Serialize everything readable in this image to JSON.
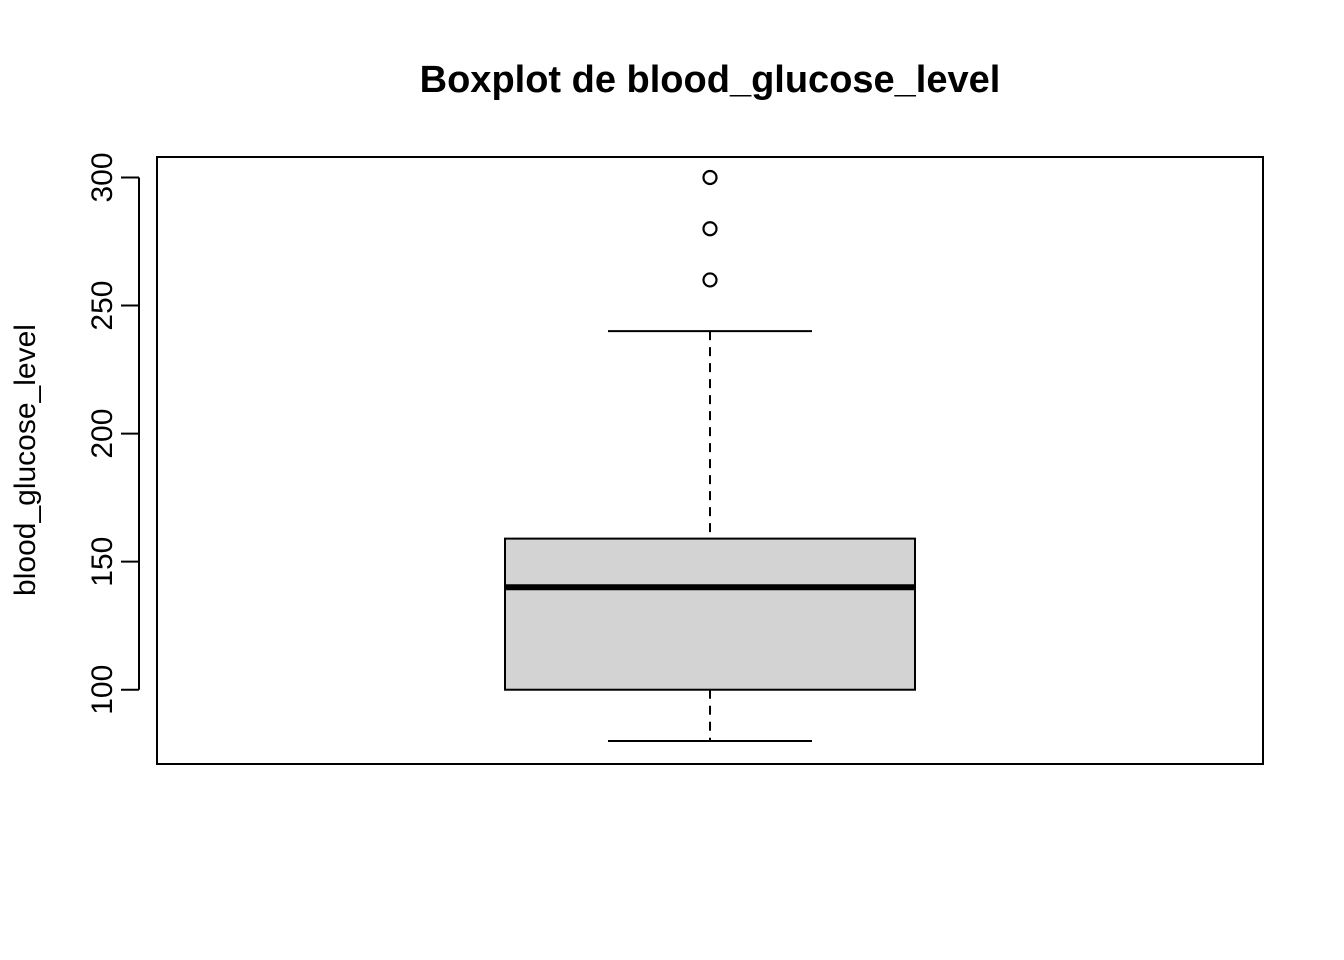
{
  "chart_data": {
    "type": "boxplot",
    "title": "Boxplot de blood_glucose_level",
    "xlabel": "",
    "ylabel": "blood_glucose_level",
    "ylim": [
      71,
      308
    ],
    "yticks": [
      100,
      150,
      200,
      250,
      300
    ],
    "box": {
      "lower_whisker": 80,
      "q1": 100,
      "median": 140,
      "q3": 159,
      "upper_whisker": 240
    },
    "outliers": [
      260,
      280,
      300
    ],
    "colors": {
      "box_fill": "#d3d3d3",
      "stroke": "#000000"
    }
  }
}
